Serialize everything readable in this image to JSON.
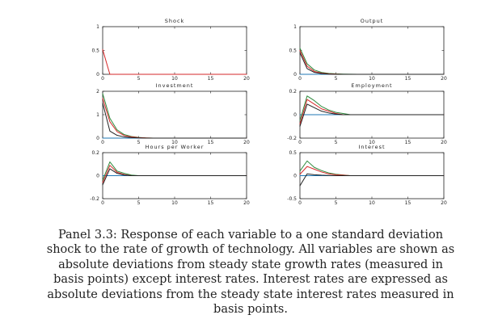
{
  "chart_data": [
    {
      "type": "line",
      "title": "Shock",
      "xlim": [
        0,
        20
      ],
      "ylim": [
        0,
        1
      ],
      "xticks": [
        "0",
        "5",
        "10",
        "15",
        "20"
      ],
      "yticks": [
        {
          "value": 0,
          "label": "0"
        },
        {
          "value": 0.5,
          "label": "0.5"
        },
        {
          "value": 1,
          "label": "1"
        }
      ],
      "series": [
        {
          "name": "red",
          "color": "#d62728",
          "x": [
            0,
            1,
            2,
            3,
            4,
            5,
            6,
            7,
            8,
            9,
            10,
            11,
            12,
            13,
            14,
            15,
            16,
            17,
            18,
            19,
            20
          ],
          "values": [
            0.52,
            0,
            0,
            0,
            0,
            0,
            0,
            0,
            0,
            0,
            0,
            0,
            0,
            0,
            0,
            0,
            0,
            0,
            0,
            0,
            0
          ]
        }
      ]
    },
    {
      "type": "line",
      "title": "Output",
      "xlim": [
        0,
        20
      ],
      "ylim": [
        0,
        1
      ],
      "xticks": [
        "0",
        "5",
        "10",
        "15",
        "20"
      ],
      "yticks": [
        {
          "value": 0,
          "label": "0"
        },
        {
          "value": 0.5,
          "label": "0.5"
        },
        {
          "value": 1,
          "label": "1"
        }
      ],
      "series": [
        {
          "name": "green",
          "color": "#2e8b3e",
          "x": [
            0,
            1,
            2,
            3,
            4,
            5,
            6,
            8,
            10,
            15,
            20
          ],
          "values": [
            0.55,
            0.22,
            0.09,
            0.04,
            0.02,
            0.01,
            0.005,
            0.0,
            0.0,
            0.0,
            0.0
          ]
        },
        {
          "name": "red",
          "color": "#d62728",
          "x": [
            0,
            1,
            2,
            3,
            4,
            5,
            6,
            8,
            10,
            15,
            20
          ],
          "values": [
            0.5,
            0.17,
            0.06,
            0.025,
            0.01,
            0.005,
            0.0,
            0.0,
            0.0,
            0.0,
            0.0
          ]
        },
        {
          "name": "black",
          "color": "#222222",
          "x": [
            0,
            1,
            2,
            3,
            4,
            5,
            6,
            8,
            10,
            15,
            20
          ],
          "values": [
            0.45,
            0.12,
            0.04,
            0.015,
            0.005,
            0.0,
            0.0,
            0.0,
            0.0,
            0.0,
            0.0
          ]
        },
        {
          "name": "blue",
          "color": "#1f77b4",
          "x": [
            0,
            20
          ],
          "values": [
            0.0,
            0.0
          ]
        }
      ]
    },
    {
      "type": "line",
      "title": "Investment",
      "xlim": [
        0,
        20
      ],
      "ylim": [
        0,
        2
      ],
      "xticks": [
        "0",
        "5",
        "10",
        "15",
        "20"
      ],
      "yticks": [
        {
          "value": 0,
          "label": "0"
        },
        {
          "value": 1,
          "label": "1"
        },
        {
          "value": 2,
          "label": "2"
        }
      ],
      "series": [
        {
          "name": "green",
          "color": "#2e8b3e",
          "x": [
            0,
            1,
            2,
            3,
            4,
            5,
            6,
            7,
            8,
            10,
            15,
            20
          ],
          "values": [
            1.9,
            0.85,
            0.35,
            0.15,
            0.07,
            0.03,
            0.01,
            0.0,
            0.0,
            0.0,
            0.0,
            0.0
          ]
        },
        {
          "name": "red",
          "color": "#d62728",
          "x": [
            0,
            1,
            2,
            3,
            4,
            5,
            6,
            7,
            8,
            10,
            15,
            20
          ],
          "values": [
            1.7,
            0.7,
            0.28,
            0.11,
            0.05,
            0.02,
            0.01,
            0.0,
            0.0,
            0.0,
            0.0,
            0.0
          ]
        },
        {
          "name": "black",
          "color": "#222222",
          "x": [
            0,
            1,
            2,
            3,
            4,
            5,
            6,
            7,
            8,
            10,
            15,
            20
          ],
          "values": [
            1.5,
            0.3,
            0.12,
            0.05,
            0.02,
            0.01,
            0.0,
            0.0,
            0.0,
            0.0,
            0.0,
            0.0
          ]
        },
        {
          "name": "blue",
          "color": "#1f77b4",
          "x": [
            0,
            20
          ],
          "values": [
            0.0,
            0.0
          ]
        }
      ]
    },
    {
      "type": "line",
      "title": "Employment",
      "xlim": [
        0,
        20
      ],
      "ylim": [
        -0.2,
        0.2
      ],
      "xticks": [
        "0",
        "5",
        "10",
        "15",
        "20"
      ],
      "yticks": [
        {
          "value": -0.2,
          "label": "-0.2"
        },
        {
          "value": 0,
          "label": "0"
        },
        {
          "value": 0.2,
          "label": "0.2"
        }
      ],
      "series": [
        {
          "name": "green",
          "color": "#2e8b3e",
          "x": [
            0,
            1,
            2,
            3,
            4,
            5,
            6,
            7,
            8,
            10,
            15,
            20
          ],
          "values": [
            -0.05,
            0.16,
            0.12,
            0.07,
            0.04,
            0.02,
            0.01,
            0.0,
            0.0,
            0.0,
            0.0,
            0.0
          ]
        },
        {
          "name": "red",
          "color": "#d62728",
          "x": [
            0,
            1,
            2,
            3,
            4,
            5,
            6,
            7,
            8,
            10,
            15,
            20
          ],
          "values": [
            -0.08,
            0.13,
            0.09,
            0.05,
            0.03,
            0.01,
            0.0,
            0.0,
            0.0,
            0.0,
            0.0,
            0.0
          ]
        },
        {
          "name": "black",
          "color": "#222222",
          "x": [
            0,
            1,
            2,
            3,
            4,
            5,
            6,
            7,
            8,
            10,
            15,
            20
          ],
          "values": [
            -0.1,
            0.09,
            0.06,
            0.03,
            0.015,
            0.005,
            0.0,
            0.0,
            0.0,
            0.0,
            0.0,
            0.0
          ]
        },
        {
          "name": "blue",
          "color": "#1f77b4",
          "x": [
            0,
            20
          ],
          "values": [
            0.0,
            0.0
          ]
        }
      ]
    },
    {
      "type": "line",
      "title": "Hours per Worker",
      "xlim": [
        0,
        20
      ],
      "ylim": [
        -0.2,
        0.2
      ],
      "xticks": [
        "0",
        "5",
        "10",
        "15",
        "20"
      ],
      "yticks": [
        {
          "value": -0.2,
          "label": "-0.2"
        },
        {
          "value": 0,
          "label": "0"
        },
        {
          "value": 0.2,
          "label": "0.2"
        }
      ],
      "series": [
        {
          "name": "green",
          "color": "#2e8b3e",
          "x": [
            0,
            1,
            2,
            3,
            4,
            5,
            6,
            8,
            10,
            15,
            20
          ],
          "values": [
            -0.04,
            0.12,
            0.04,
            0.02,
            0.005,
            0.0,
            0.0,
            0.0,
            0.0,
            0.0,
            0.0
          ]
        },
        {
          "name": "red",
          "color": "#d62728",
          "x": [
            0,
            1,
            2,
            3,
            4,
            5,
            6,
            8,
            10,
            15,
            20
          ],
          "values": [
            -0.06,
            0.09,
            0.03,
            0.01,
            0.0,
            0.0,
            0.0,
            0.0,
            0.0,
            0.0,
            0.0
          ]
        },
        {
          "name": "black",
          "color": "#222222",
          "x": [
            0,
            1,
            2,
            3,
            4,
            5,
            6,
            8,
            10,
            15,
            20
          ],
          "values": [
            -0.08,
            0.06,
            0.02,
            0.005,
            0.0,
            0.0,
            0.0,
            0.0,
            0.0,
            0.0,
            0.0
          ]
        },
        {
          "name": "blue",
          "color": "#1f77b4",
          "x": [
            0,
            20
          ],
          "values": [
            0.0,
            0.0
          ]
        }
      ]
    },
    {
      "type": "line",
      "title": "Interest",
      "xlim": [
        0,
        20
      ],
      "ylim": [
        -0.5,
        0.5
      ],
      "xticks": [
        "0",
        "5",
        "10",
        "15",
        "20"
      ],
      "yticks": [
        {
          "value": -0.5,
          "label": "-0.5"
        },
        {
          "value": 0,
          "label": "0"
        },
        {
          "value": 0.5,
          "label": "0.5"
        }
      ],
      "series": [
        {
          "name": "green",
          "color": "#2e8b3e",
          "x": [
            0,
            1,
            2,
            3,
            4,
            5,
            6,
            7,
            8,
            10,
            15,
            20
          ],
          "values": [
            0.1,
            0.32,
            0.18,
            0.11,
            0.06,
            0.03,
            0.015,
            0.0,
            0.0,
            0.0,
            0.0,
            0.0
          ]
        },
        {
          "name": "red",
          "color": "#d62728",
          "x": [
            0,
            1,
            2,
            3,
            4,
            5,
            6,
            7,
            8,
            10,
            15,
            20
          ],
          "values": [
            0.03,
            0.2,
            0.14,
            0.08,
            0.04,
            0.02,
            0.01,
            0.0,
            0.0,
            0.0,
            0.0,
            0.0
          ]
        },
        {
          "name": "black",
          "color": "#222222",
          "x": [
            0,
            1,
            2,
            3,
            4,
            5,
            6,
            7,
            8,
            10,
            15,
            20
          ],
          "values": [
            -0.22,
            0.04,
            0.02,
            0.01,
            0.005,
            0.0,
            0.0,
            0.0,
            0.0,
            0.0,
            0.0,
            0.0
          ]
        },
        {
          "name": "blue",
          "color": "#1f77b4",
          "x": [
            0,
            20
          ],
          "values": [
            0.0,
            0.0
          ]
        }
      ]
    }
  ],
  "caption": "Panel 3.3: Response of each variable to a one standard deviation shock to the rate of growth of technology.  All variables are shown as absolute deviations from steady state growth rates (measured in basis points) except interest rates. Interest rates are expressed as absolute deviations from the steady state interest rates measured in basis points."
}
